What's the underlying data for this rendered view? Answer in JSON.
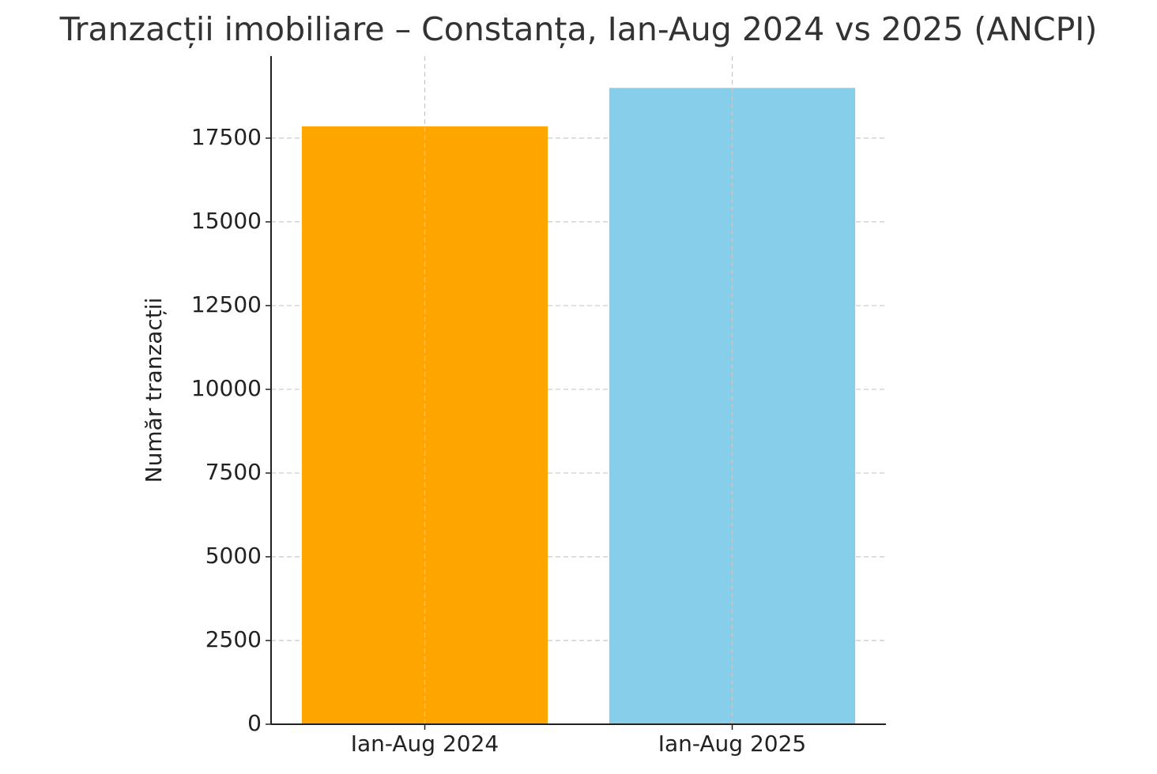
{
  "chart_data": {
    "type": "bar",
    "title": "Tranzacții imobiliare – Constanța, Ian-Aug 2024 vs 2025 (ANCPI)",
    "y_label": "Număr tranzacții",
    "categories": [
      "Ian-Aug 2024",
      "Ian-Aug 2025"
    ],
    "values": [
      17850,
      19000
    ],
    "colors": [
      "#FFA500",
      "#87CEEB"
    ],
    "ylim": [
      0,
      19950
    ],
    "yticks": [
      0,
      2500,
      5000,
      7500,
      10000,
      12500,
      15000,
      17500
    ],
    "grid": true
  }
}
